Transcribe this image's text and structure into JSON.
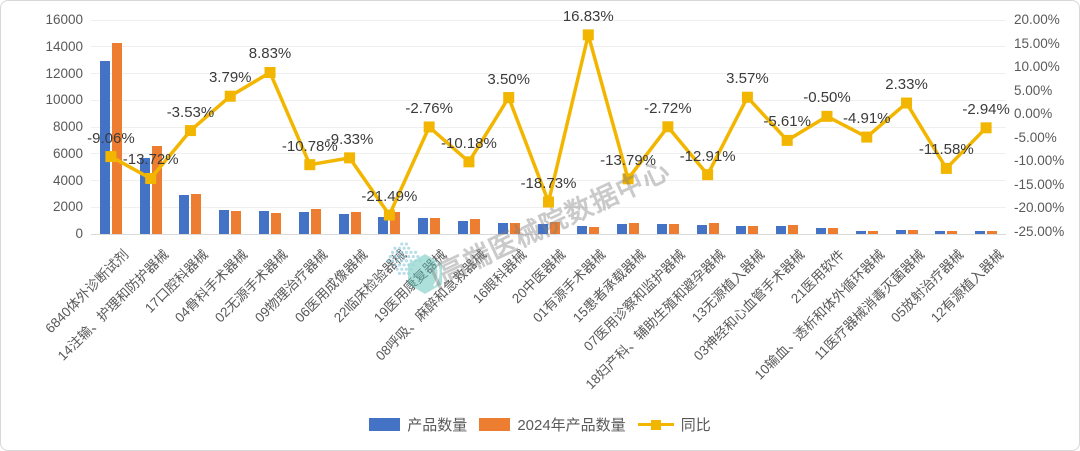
{
  "chart_data": {
    "type": "bar",
    "subtype": "combo-bar-line-dual-axis",
    "title": "",
    "categories": [
      "6840体外诊断试剂",
      "14注输、护理和防护器械",
      "17口腔科器械",
      "04骨科手术器械",
      "02无源手术器械",
      "09物理治疗器械",
      "06医用成像器械",
      "22临床检验器械",
      "19医用康复器械",
      "08呼吸、麻醉和急救器械",
      "16眼科器械",
      "20中医器械",
      "01有源手术器械",
      "15患者承载器械",
      "07医用诊察和监护器械",
      "18妇产科、辅助生殖和避孕器械",
      "13无源植入器械",
      "03神经和心血管手术器械",
      "21医用软件",
      "10输血、透析和体外循环器械",
      "11医疗器械消毒灭菌器械",
      "05放射治疗器械",
      "12有源植入器械"
    ],
    "series": [
      {
        "name": "产品数量",
        "type": "bar",
        "color": "#4472C4",
        "values": [
          12950,
          5700,
          2900,
          1815,
          1740,
          1650,
          1500,
          1300,
          1190,
          980,
          820,
          715,
          630,
          730,
          740,
          700,
          620,
          615,
          438,
          238,
          276,
          203,
          194
        ]
      },
      {
        "name": "2024年产品数量",
        "type": "bar",
        "color": "#ED7D31",
        "values": [
          14250,
          6600,
          3000,
          1750,
          1600,
          1850,
          1650,
          1650,
          1225,
          1090,
          790,
          880,
          540,
          850,
          760,
          800,
          600,
          650,
          440,
          250,
          270,
          230,
          200
        ]
      },
      {
        "name": "同比",
        "type": "line",
        "color": "#F2B600",
        "axis": "secondary",
        "values": [
          -9.06,
          -13.72,
          -3.53,
          3.79,
          8.83,
          -10.78,
          -9.33,
          -21.49,
          -2.76,
          -10.18,
          3.5,
          -18.73,
          16.83,
          -13.79,
          -2.72,
          -12.91,
          3.57,
          -5.61,
          -0.5,
          -4.91,
          2.33,
          -11.58,
          -2.94
        ],
        "point_labels": [
          "-9.06%",
          "-13.72%",
          "-3.53%",
          "3.79%",
          "8.83%",
          "-10.78%",
          "-9.33%",
          "-21.49%",
          "-2.76%",
          "-10.18%",
          "3.50%",
          "-18.73%",
          "16.83%",
          "-13.79%",
          "-2.72%",
          "-12.91%",
          "3.57%",
          "-5.61%",
          "-0.50%",
          "-4.91%",
          "2.33%",
          "-11.58%",
          "-2.94%"
        ]
      }
    ],
    "primary_axis": {
      "min": 0,
      "max": 16000,
      "step": 2000,
      "tick_labels": [
        "0",
        "2000",
        "4000",
        "6000",
        "8000",
        "10000",
        "12000",
        "14000",
        "16000"
      ]
    },
    "secondary_axis": {
      "min": -25,
      "max": 20,
      "step": 5,
      "tick_labels": [
        "20.00%",
        "15.00%",
        "10.00%",
        "5.00%",
        "0.00%",
        "-5.00%",
        "-10.00%",
        "-15.00%",
        "-20.00%",
        "-25.00%"
      ]
    },
    "legend_position": "bottom",
    "grid": true
  },
  "watermark": {
    "text": "|高端医械院数据中心",
    "logo": "teal-dotted-hexagon"
  }
}
